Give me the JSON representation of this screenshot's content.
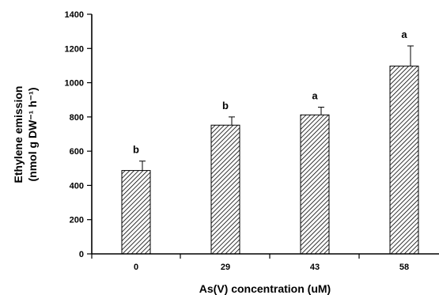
{
  "chart_data": {
    "type": "bar",
    "categories": [
      "0",
      "29",
      "43",
      "58"
    ],
    "values": [
      487,
      752,
      812,
      1097
    ],
    "error": [
      55,
      48,
      45,
      118
    ],
    "significance": [
      "b",
      "b",
      "a",
      "a"
    ],
    "xlabel": "As(V) concentration (uM)",
    "ylabel_line1": "Ethylene emission",
    "ylabel_line2": "(nmol g DW⁻¹ h⁻¹)",
    "ylim": [
      0,
      1400
    ],
    "yticks": [
      "0",
      "200",
      "400",
      "600",
      "800",
      "1000",
      "1200",
      "1400"
    ],
    "grid": false,
    "legend": "none",
    "bar_fill": "hatched"
  }
}
